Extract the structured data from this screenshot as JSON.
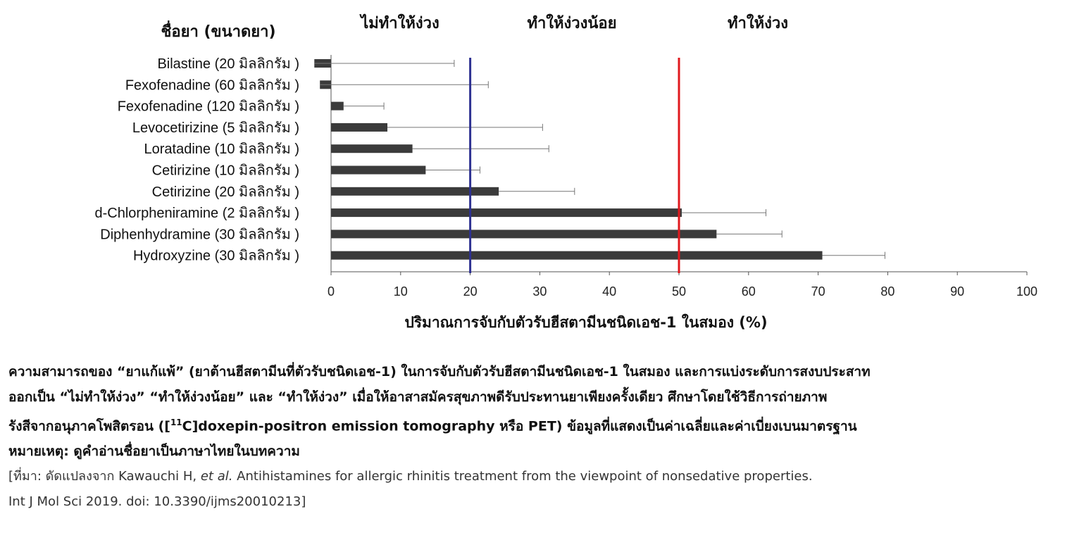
{
  "chart_data": {
    "type": "bar",
    "orientation": "horizontal",
    "label_column_title": "ชื่อยา (ขนาดยา)",
    "zone_labels": [
      "ไม่ทำให้ง่วง",
      "ทำให้ง่วงน้อย",
      "ทำให้ง่วง"
    ],
    "categories": [
      "Bilastine (20  มิลลิกรัม )",
      "Fexofenadine (60  มิลลิกรัม )",
      "Fexofenadine (120  มิลลิกรัม )",
      "Levocetirizine (5  มิลลิกรัม )",
      "Loratadine (10  มิลลิกรัม )",
      "Cetirizine (10  มิลลิกรัม )",
      "Cetirizine (20  มิลลิกรัม )",
      "d-Chlorpheniramine (2  มิลลิกรัม )",
      "Diphenhydramine (30  มิลลิกรัม )",
      "Hydroxyzine (30  มิลลิกรัม )"
    ],
    "values": [
      -2.4,
      -1.6,
      1.8,
      8.1,
      11.7,
      13.6,
      24.1,
      50.4,
      55.4,
      70.6
    ],
    "error_upper": [
      17.7,
      22.6,
      7.6,
      30.4,
      31.3,
      21.4,
      35.0,
      62.5,
      64.8,
      79.6
    ],
    "thresholds": [
      {
        "value": 20,
        "color": "#2e3192"
      },
      {
        "value": 50,
        "color": "#e0191e"
      }
    ],
    "xlabel": "ปริมาณการจับกับตัวรับฮีสตามีนชนิดเอช-1 ในสมอง (%)",
    "xlim": [
      0,
      100
    ],
    "xticks": [
      "0",
      "10",
      "20",
      "30",
      "40",
      "50",
      "60",
      "70",
      "80",
      "90",
      "100"
    ],
    "grid": false,
    "bar_color": "#3b3b3b"
  },
  "caption": {
    "line1": "ความสามารถของ “ยาแก้แพ้” (ยาต้านฮีสตามีนที่ตัวรับชนิดเอช-1) ในการจับกับตัวรับฮีสตามีนชนิดเอช-1 ในสมอง และการแบ่งระดับการสงบประสาท",
    "line2": "ออกเป็น “ไม่ทำให้ง่วง” “ทำให้ง่วงน้อย” และ “ทำให้ง่วง” เมื่อให้อาสาสมัครสุขภาพดีรับประทานยาเพียงครั้งเดียว ศึกษาโดยใช้วิธีการถ่ายภาพ",
    "line3_pre": "รังสีจากอนุภาคโพสิตรอน ([",
    "line3_sup": "11",
    "line3_post": "C]doxepin-positron emission tomography หรือ PET) ข้อมูลที่แสดงเป็นค่าเฉลี่ยและค่าเบี่ยงเบนมาตรฐาน",
    "note": "หมายเหตุ: ดูคำอ่านชื่อยาเป็นภาษาไทยในบทความ",
    "source_pre": "[ที่มา: ดัดแปลงจาก Kawauchi H, ",
    "source_etal": "et al.",
    "source_post": " Antihistamines for allergic rhinitis treatment from the viewpoint of nonsedative properties.",
    "source_line2": "Int J Mol Sci 2019. doi: 10.3390/ijms20010213]"
  }
}
